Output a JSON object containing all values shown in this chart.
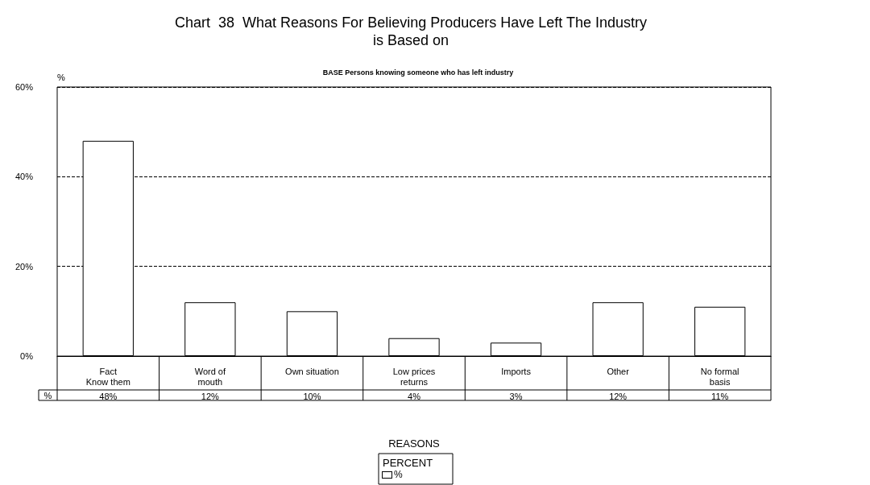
{
  "chart_data": {
    "type": "bar",
    "title": "Chart  38  What Reasons For Believing Producers Have Left The Industry\nis Based on",
    "subtitle": "BASE Persons knowing someone who has left industry",
    "xlabel": "REASONS",
    "ylabel": "%",
    "legend_title": "PERCENT",
    "categories": [
      "Fact\nKnow them",
      "Word of\nmouth",
      "Own situation",
      "Low prices\nreturns",
      "Imports",
      "Other",
      "No formal\nbasis"
    ],
    "series": [
      {
        "name": "%",
        "color": "#ffffff",
        "values": [
          48,
          12,
          10,
          4,
          3,
          12,
          11
        ],
        "value_labels": [
          "48%",
          "12%",
          "10%",
          "4%",
          "3%",
          "12%",
          "11%"
        ]
      }
    ],
    "ylim": [
      0,
      60
    ],
    "yticks": [
      {
        "value": 0,
        "label": "0%"
      },
      {
        "value": 20,
        "label": "20%"
      },
      {
        "value": 40,
        "label": "40%"
      },
      {
        "value": 60,
        "label": "60%"
      }
    ],
    "grid": "y",
    "line_style": "dashed",
    "legend": "bottom",
    "data_labels": true
  }
}
